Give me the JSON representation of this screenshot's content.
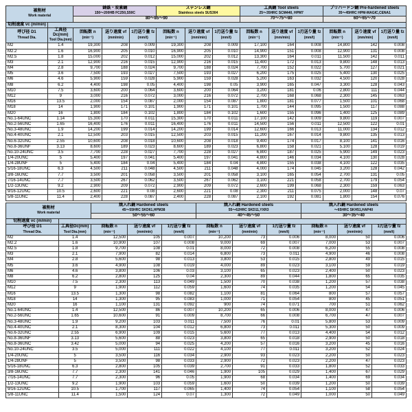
{
  "labels": {
    "work_material_jp": "被削材",
    "work_material_en": "Work material",
    "cutting_speed_jp": "切削速度 vc (m/min)",
    "thread_dia_jp": "呼び径 D1",
    "thread_dia_en": "Thread Dia.",
    "tool_dia_jp": "工具径Dc(mm)",
    "tool_dia_en": "Tool Dia.(mm)",
    "rpm_jp": "回転数 n",
    "rpm_unit": "(min⁻¹)",
    "feed_jp": "送り速度 vf",
    "feed_unit": "(mm/min)",
    "fz_jp": "1刃送り量 fz",
    "fz_unit": "(mm/t)"
  },
  "materials_top": [
    {
      "title_jp": "鋳鉄・炭素鋼",
      "sub": "150～200HB FC250,S50C",
      "class": "hdr-purple",
      "vc": "80～85～90"
    },
    {
      "title_jp": "ステンレス鋼",
      "sub": "Stainless steels SUS304",
      "class": "hdr-yellow",
      "vc_hidden": true
    },
    {
      "title_jp": "工具鋼 Tool steels",
      "sub": "25～35HRC SCM440, HPM7",
      "class": "hdr-blue",
      "vc": "70～75～80"
    },
    {
      "title_jp": "プリハードン鋼 Pre-hardened steels",
      "sub": "35～45HRC HPM-MAGIC,CENA1",
      "class": "hdr-blue",
      "vc": "60～65～70"
    }
  ],
  "materials_bot": [
    {
      "title_jp": "焼入れ鋼 Hardened steels",
      "sub": "45～55HRC SKD61,HPM38",
      "class": "hdr-blue",
      "vc": "50～55～60"
    },
    {
      "title_jp": "焼入れ鋼 Hardened steels",
      "sub": "55～62HRC SKD11,YXR3",
      "class": "hdr-blue",
      "vc": "40～45～50"
    },
    {
      "title_jp": "焼入れ鋼 Hardened steels",
      "sub": "～65HRC SKH51,HAP40",
      "class": "hdr-blue",
      "vc": "30～35～40"
    }
  ],
  "rows_top": [
    [
      "M2",
      "1.4",
      "19,300",
      "208",
      "0.009",
      "17,100",
      "164",
      "0.008",
      "14,800",
      "142",
      "0.008"
    ],
    [
      "M2.2",
      "1.6",
      "16,900",
      "205",
      "0.010",
      "14,900",
      "151",
      "0.008",
      "12,900",
      "131",
      "0.008"
    ],
    [
      "M2.5",
      "1.8",
      "15,000",
      "202",
      "0.012",
      "13,300",
      "164",
      "0.011",
      "11,500",
      "142",
      "0.011"
    ],
    [
      "M3",
      "2.1",
      "12,900",
      "216",
      "0.015",
      "11,400",
      "172",
      "0.013",
      "9,800",
      "148",
      "0.013"
    ],
    [
      "M4",
      "2.8",
      "9,700",
      "188",
      "0.024",
      "7,700",
      "152",
      "0.022",
      "5,700",
      "127",
      "0.021"
    ],
    [
      "M5",
      "3.6",
      "7,500",
      "193",
      "0.027",
      "6,200",
      "175",
      "0.025",
      "5,400",
      "130",
      "0.025"
    ],
    [
      "M6",
      "4.6",
      "5,900",
      "159",
      "0.028",
      "5,200",
      "163",
      "0.032",
      "4,500",
      "120",
      "0.028"
    ],
    [
      "M8",
      "6.2",
      "4,400",
      "198",
      "0.05",
      "3,900",
      "165",
      "0.047",
      "3,300",
      "128",
      "0.043"
    ],
    [
      "M10",
      "7.5",
      "3,600",
      "200",
      "0.064",
      "3,200",
      "181",
      "0.06",
      "2,800",
      "111",
      "0.044"
    ],
    [
      "M12",
      "9",
      "3,000",
      "216",
      "0.072",
      "2,700",
      "168",
      "0.068",
      "2,300",
      "145",
      "0.063"
    ],
    [
      "M16",
      "13.5",
      "2,000",
      "154",
      "0.087",
      "1,800",
      "181",
      "0.077",
      "1,500",
      "101",
      "0.068"
    ],
    [
      "M18",
      "14",
      "1,900",
      "171",
      "0.101",
      "1,700",
      "144",
      "0.095",
      "1,500",
      "117",
      "0.088"
    ],
    [
      "M20",
      "16",
      "1,800",
      "184",
      "0.102",
      "1,600",
      "155",
      "0.096",
      "1,400",
      "125",
      "0.089"
    ],
    [
      "No.1-64UNC",
      "1.14",
      "15,300",
      "170",
      "0.011",
      "17,100",
      "142",
      "0.009",
      "9,800",
      "119",
      "0.007"
    ],
    [
      "No.2-56UNC",
      "1.65",
      "16,400",
      "176",
      "0.011",
      "14,500",
      "156",
      "0.011",
      "12,500",
      "122",
      "0.01"
    ],
    [
      "No.3-48UNC",
      "1.9",
      "14,200",
      "199",
      "0.014",
      "12,600",
      "166",
      "0.013",
      "11,000",
      "134",
      "0.012"
    ],
    [
      "No.4-40UNC",
      "2.1",
      "12,500",
      "203",
      "0.015",
      "11,200",
      "167",
      "0.014",
      "9,800",
      "135",
      "0.013"
    ],
    [
      "No.6-32UNC",
      "2.55",
      "10,600",
      "208",
      "0.018",
      "9,400",
      "174",
      "0.017",
      "8,100",
      "141",
      "0.016"
    ],
    [
      "No.8-36UNF",
      "3.13",
      "8,600",
      "189",
      "0.023",
      "6,800",
      "158",
      "0.021",
      "5,100",
      "128",
      "0.019"
    ],
    [
      "No.10-24UNC",
      "3.5",
      "7,700",
      "228",
      "0.027",
      "6,800",
      "187",
      "0.025",
      "5,900",
      "149",
      "0.023"
    ],
    [
      "1/4-20UNC",
      "5",
      "5,400",
      "197",
      "0.041",
      "4,800",
      "146",
      "0.034",
      "4,100",
      "130",
      "0.028"
    ],
    [
      "1/4-28UNF",
      "5",
      "5,400",
      "184",
      "0.04",
      "4,800",
      "155",
      "0.038",
      "4,100",
      "122",
      "0.035"
    ],
    [
      "5/16-18UNC",
      "6.3",
      "4,500",
      "211",
      "0.048",
      "4,000",
      "174",
      "0.045",
      "3,200",
      "128",
      "0.042"
    ],
    [
      "3/8-16UNC",
      "7.7",
      "3,500",
      "201",
      "0.058",
      "3,100",
      "165",
      "0.054",
      "2,700",
      "131",
      "0.05"
    ],
    [
      "7/16-14UNC",
      "7.7",
      "3,500",
      "267",
      "0.062",
      "3,100",
      "221",
      "0.058",
      "2,700",
      "179",
      "0.054"
    ],
    [
      "1/2-13UNC",
      "9.2",
      "2,900",
      "209",
      "0.072",
      "2,600",
      "199",
      "0.068",
      "2,300",
      "159",
      "0.063"
    ],
    [
      "9/16-12UNC",
      "10.5",
      "2,600",
      "221",
      "0.08",
      "2,300",
      "211",
      "0.075",
      "2,000",
      "148",
      "0.07"
    ],
    [
      "5/8-11UNC",
      "11.4",
      "2,400",
      "228",
      "0.087",
      "2,100",
      "192",
      "0.081",
      "1,800",
      "154",
      "0.076"
    ]
  ],
  "rows_bot": [
    [
      "M2",
      "1.4",
      "12,500",
      "105",
      "0.007",
      "10,200",
      "73",
      "0.006",
      "8,000",
      "50",
      "0.006"
    ],
    [
      "M2.2",
      "1.6",
      "10,900",
      "107",
      "0.008",
      "9,000",
      "69",
      "0.007",
      "7,000",
      "53",
      "0.007"
    ],
    [
      "M2.5",
      "1.8",
      "9,700",
      "108",
      "0.01",
      "8,000",
      "72",
      "0.008",
      "6,200",
      "55",
      "0.008"
    ],
    [
      "M3",
      "2.1",
      "7,900",
      "82",
      "0.014",
      "6,800",
      "73",
      "0.011",
      "4,900",
      "46",
      "0.008"
    ],
    [
      "M4",
      "2.8",
      "5,600",
      "98",
      "0.013",
      "3,800",
      "53",
      "0.015",
      "2,800",
      "49",
      "0.015"
    ],
    [
      "M5",
      "3.6",
      "4,900",
      "108",
      "0.019",
      "4,000",
      "89",
      "0.023",
      "3,100",
      "59",
      "0.019"
    ],
    [
      "M6",
      "4.6",
      "3,800",
      "106",
      "0.03",
      "3,100",
      "65",
      "0.023",
      "2,400",
      "50",
      "0.023"
    ],
    [
      "M8",
      "6.2",
      "2,800",
      "125",
      "0.04",
      "2,300",
      "89",
      "0.044",
      "1,800",
      "65",
      "0.035"
    ],
    [
      "M10",
      "7.5",
      "2,300",
      "113",
      "0.049",
      "1,500",
      "70",
      "0.038",
      "1,200",
      "57",
      "0.038"
    ],
    [
      "M12",
      "9",
      "1,900",
      "112",
      "0.059",
      "1,600",
      "74",
      "0.035",
      "1,200",
      "54",
      "0.045"
    ],
    [
      "M16",
      "13.5",
      "1,300",
      "98",
      "0.082",
      "1,100",
      "81",
      "0.064",
      "800",
      "57",
      "0.057"
    ],
    [
      "M18",
      "14",
      "1,300",
      "95",
      "0.083",
      "1,000",
      "71",
      "0.054",
      "800",
      "45",
      "0.051"
    ],
    [
      "M20",
      "16",
      "1,100",
      "131",
      "0.092",
      "900",
      "74",
      "0.071",
      "700",
      "51",
      "0.062"
    ],
    [
      "No.1-64UNC",
      "1.4",
      "12,500",
      "86",
      "0.007",
      "10,200",
      "65",
      "0.006",
      "8,000",
      "47",
      "0.006"
    ],
    [
      "No.2-56UNC",
      "1.65",
      "10,600",
      "91",
      "0.009",
      "8,700",
      "66",
      "0.008",
      "6,700",
      "47",
      "0.007"
    ],
    [
      "No.3-48UNC",
      "1.9",
      "9,200",
      "103",
      "0.011",
      "7,500",
      "76",
      "0.01",
      "5,800",
      "53",
      "0.009"
    ],
    [
      "No.4-40UNC",
      "2.1",
      "8,300",
      "104",
      "0.012",
      "6,800",
      "73",
      "0.011",
      "5,300",
      "50",
      "0.009"
    ],
    [
      "No.6-32UNC",
      "2.55",
      "6,900",
      "109",
      "0.015",
      "5,600",
      "77",
      "0.013",
      "4,400",
      "54",
      "0.012"
    ],
    [
      "No.8-36UNF",
      "3.13",
      "5,600",
      "88",
      "0.023",
      "3,800",
      "65",
      "0.018",
      "2,900",
      "50",
      "0.018"
    ],
    [
      "No.8-36UNC",
      "3.42",
      "5,000",
      "94",
      "0.025",
      "4,200",
      "57",
      "0.016",
      "3,200",
      "45",
      "0.016"
    ],
    [
      "No.10-24UNC",
      "3.5",
      "5,000",
      "111",
      "0.022",
      "4,100",
      "77",
      "0.011",
      "3,200",
      "52",
      "0.024"
    ],
    [
      "1/4-20UNC",
      "5",
      "3,500",
      "116",
      "0.034",
      "2,900",
      "93",
      "0.023",
      "2,200",
      "50",
      "0.023"
    ],
    [
      "1/4-28UNF",
      "5",
      "3,500",
      "98",
      "0.033",
      "2,900",
      "72",
      "0.023",
      "2,200",
      "47",
      "0.023"
    ],
    [
      "5/16-18UNC",
      "6.3",
      "2,800",
      "105",
      "0.039",
      "2,700",
      "91",
      "0.033",
      "1,800",
      "52",
      "0.033"
    ],
    [
      "3/8-16UNC",
      "7.7",
      "2,300",
      "141",
      "0.046",
      "1,900",
      "105",
      "0.029",
      "1,400",
      "67",
      "0.029"
    ],
    [
      "7/16-14UNC",
      "7.7",
      "2,300",
      "96",
      "0.05",
      "1,900",
      "68",
      "0.034",
      "1,400",
      "69",
      "0.034"
    ],
    [
      "1/2-13UNC",
      "9.2",
      "1,900",
      "103",
      "0.059",
      "1,600",
      "50",
      "0.039",
      "1,200",
      "50",
      "0.039"
    ],
    [
      "9/16-12UNC",
      "10.5",
      "1,700",
      "117",
      "0.065",
      "1,400",
      "74",
      "0.054",
      "1,100",
      "58",
      "0.054"
    ],
    [
      "5/8-11UNC",
      "11.4",
      "1,500",
      "124",
      "0.07",
      "1,300",
      "72",
      "0.049",
      "1,000",
      "50",
      "0.049"
    ]
  ]
}
